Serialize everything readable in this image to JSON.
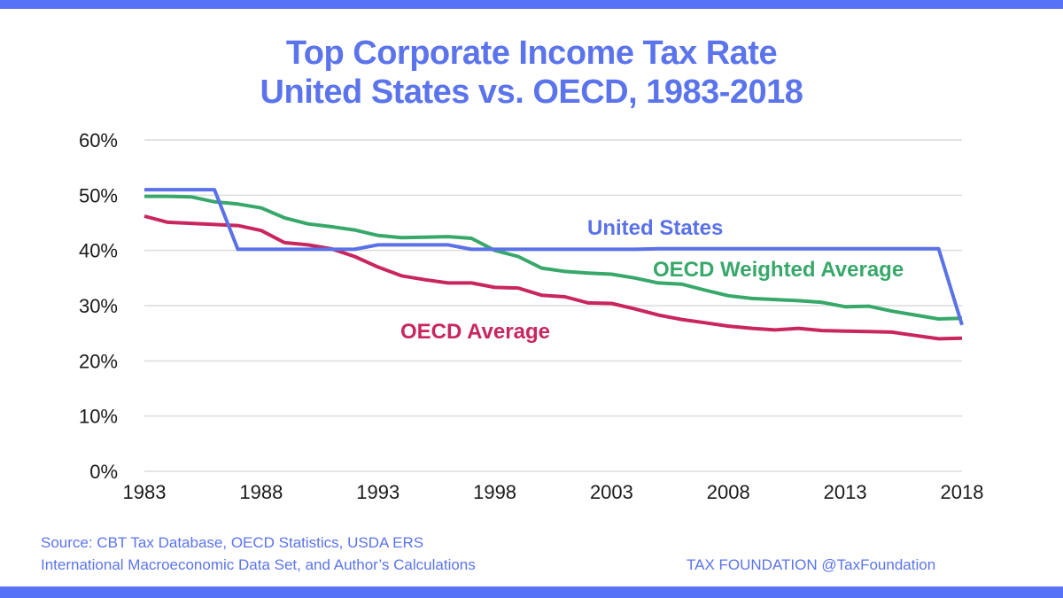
{
  "chart_data": {
    "type": "line",
    "title": "Top Corporate Income Tax Rate",
    "subtitle": "United States vs. OECD, 1983-2018",
    "xlabel": "",
    "ylabel": "",
    "x": [
      1983,
      1984,
      1985,
      1986,
      1987,
      1988,
      1989,
      1990,
      1991,
      1992,
      1993,
      1994,
      1995,
      1996,
      1997,
      1998,
      1999,
      2000,
      2001,
      2002,
      2003,
      2004,
      2005,
      2006,
      2007,
      2008,
      2009,
      2010,
      2011,
      2012,
      2013,
      2014,
      2015,
      2016,
      2017,
      2018
    ],
    "xlim": [
      1983,
      2018
    ],
    "ylim": [
      0,
      60
    ],
    "x_ticks": [
      1983,
      1988,
      1993,
      1998,
      2003,
      2008,
      2013,
      2018
    ],
    "x_tick_labels": [
      "1983",
      "1988",
      "1993",
      "1998",
      "2003",
      "2008",
      "2013",
      "2018"
    ],
    "y_ticks": [
      0,
      10,
      20,
      30,
      40,
      50,
      60
    ],
    "y_tick_labels": [
      "0%",
      "10%",
      "20%",
      "30%",
      "40%",
      "50%",
      "60%"
    ],
    "grid": "horizontal",
    "legend": "inline labels",
    "series": [
      {
        "name": "United States",
        "color": "#5a72e6",
        "values": [
          51.0,
          51.0,
          51.0,
          51.0,
          40.2,
          40.2,
          40.2,
          40.2,
          40.2,
          40.2,
          41.0,
          41.0,
          41.0,
          41.0,
          40.2,
          40.2,
          40.2,
          40.2,
          40.2,
          40.2,
          40.2,
          40.2,
          40.3,
          40.3,
          40.3,
          40.3,
          40.3,
          40.3,
          40.3,
          40.3,
          40.3,
          40.3,
          40.3,
          40.3,
          40.3,
          26.5
        ]
      },
      {
        "name": "OECD Weighted Average",
        "color": "#37a86a",
        "values": [
          49.8,
          49.8,
          49.7,
          48.8,
          48.4,
          47.7,
          45.9,
          44.8,
          44.3,
          43.7,
          42.7,
          42.3,
          42.4,
          42.5,
          42.2,
          40.0,
          38.9,
          36.8,
          36.2,
          35.9,
          35.7,
          35.0,
          34.1,
          33.9,
          32.8,
          31.8,
          31.3,
          31.1,
          30.9,
          30.6,
          29.8,
          29.9,
          29.0,
          28.3,
          27.6,
          27.7
        ]
      },
      {
        "name": "OECD Average",
        "color": "#c9265d",
        "values": [
          46.2,
          45.1,
          44.9,
          44.7,
          44.5,
          43.6,
          41.4,
          41.0,
          40.3,
          38.9,
          37.0,
          35.4,
          34.7,
          34.1,
          34.1,
          33.3,
          33.2,
          31.9,
          31.6,
          30.5,
          30.4,
          29.4,
          28.3,
          27.5,
          26.9,
          26.3,
          25.9,
          25.6,
          25.9,
          25.5,
          25.4,
          25.3,
          25.2,
          24.6,
          24.0,
          24.1
        ]
      }
    ],
    "annotations": [
      "United States",
      "OECD Weighted Average",
      "OECD Average"
    ]
  },
  "footer": {
    "source_line1": "Source: CBT Tax Database, OECD Statistics, USDA ERS",
    "source_line2": "International Macroeconomic Data Set, and Author’s Calculations",
    "brand": "TAX FOUNDATION @TaxFoundation"
  },
  "colors": {
    "accent": "#5672f7",
    "title": "#5b74ec",
    "gridline": "#dcdcdc"
  }
}
